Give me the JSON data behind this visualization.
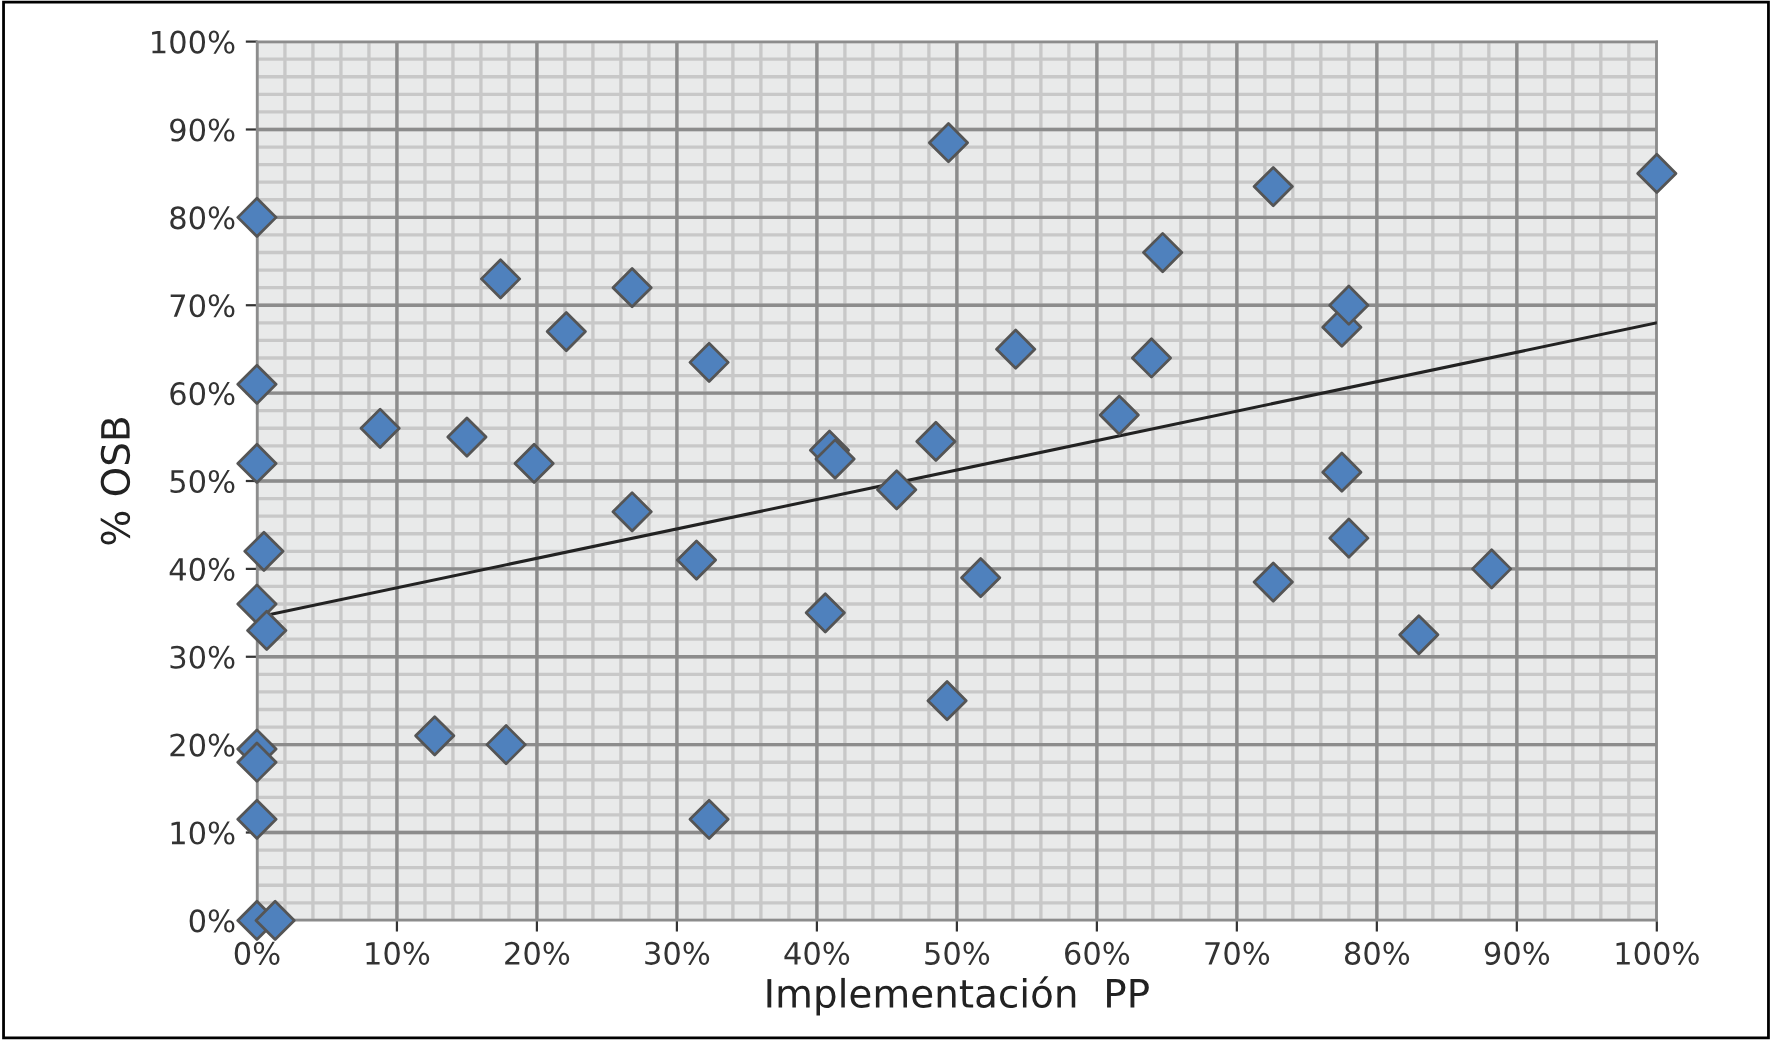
{
  "chart_data": {
    "type": "scatter",
    "xlabel": "Implementación  PP",
    "ylabel": "% OSB",
    "xlim": [
      0,
      100
    ],
    "ylim": [
      0,
      100
    ],
    "xticks": [
      {
        "value": 0,
        "label": "0%"
      },
      {
        "value": 10,
        "label": "10%"
      },
      {
        "value": 20,
        "label": "20%"
      },
      {
        "value": 30,
        "label": "30%"
      },
      {
        "value": 40,
        "label": "40%"
      },
      {
        "value": 50,
        "label": "50%"
      },
      {
        "value": 60,
        "label": "60%"
      },
      {
        "value": 70,
        "label": "70%"
      },
      {
        "value": 80,
        "label": "80%"
      },
      {
        "value": 90,
        "label": "90%"
      },
      {
        "value": 100,
        "label": "100%"
      }
    ],
    "yticks": [
      {
        "value": 0,
        "label": "0%"
      },
      {
        "value": 10,
        "label": "10%"
      },
      {
        "value": 20,
        "label": "20%"
      },
      {
        "value": 30,
        "label": "30%"
      },
      {
        "value": 40,
        "label": "40%"
      },
      {
        "value": 50,
        "label": "50%"
      },
      {
        "value": 60,
        "label": "60%"
      },
      {
        "value": 70,
        "label": "70%"
      },
      {
        "value": 80,
        "label": "80%"
      },
      {
        "value": 90,
        "label": "90%"
      },
      {
        "value": 100,
        "label": "100%"
      }
    ],
    "grid": true,
    "marker": "diamond",
    "series": [
      {
        "color": "#4f81bd",
        "x": [
          0,
          0,
          0,
          0.5,
          0,
          0.7,
          0,
          0,
          0,
          0,
          1.3,
          8.8,
          12.7,
          15,
          17.4,
          17.8,
          19.8,
          22.1,
          26.8,
          26.8,
          31.4,
          32.3,
          32.3,
          40.6,
          40.9,
          41.3,
          45.7,
          48.5,
          49.4,
          49.3,
          51.7,
          54.2,
          61.6,
          63.9,
          64.7,
          72.6,
          72.6,
          77.5,
          78,
          77.5,
          78,
          83,
          88.2,
          100
        ],
        "values": [
          80,
          61,
          52,
          42,
          36,
          33,
          19.5,
          18,
          11.5,
          0,
          0,
          56,
          21,
          55,
          73,
          20,
          52,
          67,
          72,
          46.5,
          41,
          63.5,
          11.5,
          35,
          53.5,
          52.5,
          49,
          54.5,
          88.5,
          25,
          39,
          65,
          57.5,
          64,
          76,
          83.5,
          38.5,
          67.5,
          70,
          51,
          43.5,
          32.5,
          40,
          85
        ]
      },
      {
        "type": "line",
        "color": "#222222",
        "marker": "none",
        "x": [
          0,
          100
        ],
        "values": [
          34.5,
          68
        ]
      }
    ]
  }
}
